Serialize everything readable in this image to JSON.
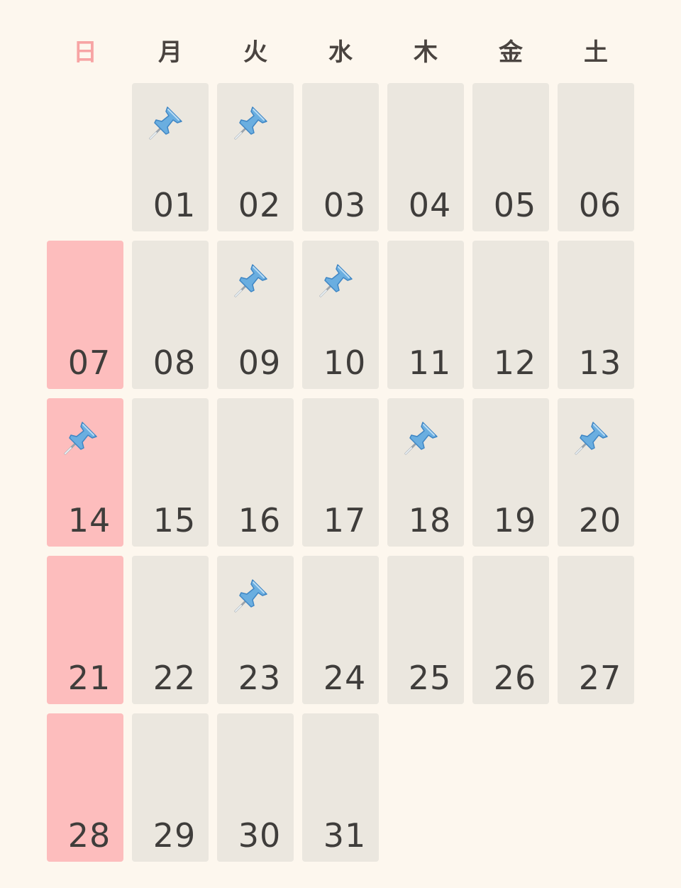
{
  "calendar": {
    "weekdays": [
      {
        "label": "日",
        "key": "sun"
      },
      {
        "label": "月",
        "key": "mon"
      },
      {
        "label": "火",
        "key": "tue"
      },
      {
        "label": "水",
        "key": "wed"
      },
      {
        "label": "木",
        "key": "thu"
      },
      {
        "label": "金",
        "key": "fri"
      },
      {
        "label": "土",
        "key": "sat"
      }
    ],
    "leading_blank_days": 1,
    "days": [
      {
        "label": "01",
        "pinned": true
      },
      {
        "label": "02",
        "pinned": true
      },
      {
        "label": "03",
        "pinned": false
      },
      {
        "label": "04",
        "pinned": false
      },
      {
        "label": "05",
        "pinned": false
      },
      {
        "label": "06",
        "pinned": false
      },
      {
        "label": "07",
        "pinned": false
      },
      {
        "label": "08",
        "pinned": false
      },
      {
        "label": "09",
        "pinned": true
      },
      {
        "label": "10",
        "pinned": true
      },
      {
        "label": "11",
        "pinned": false
      },
      {
        "label": "12",
        "pinned": false
      },
      {
        "label": "13",
        "pinned": false
      },
      {
        "label": "14",
        "pinned": true
      },
      {
        "label": "15",
        "pinned": false
      },
      {
        "label": "16",
        "pinned": false
      },
      {
        "label": "17",
        "pinned": false
      },
      {
        "label": "18",
        "pinned": true
      },
      {
        "label": "19",
        "pinned": false
      },
      {
        "label": "20",
        "pinned": true
      },
      {
        "label": "21",
        "pinned": false
      },
      {
        "label": "22",
        "pinned": false
      },
      {
        "label": "23",
        "pinned": true
      },
      {
        "label": "24",
        "pinned": false
      },
      {
        "label": "25",
        "pinned": false
      },
      {
        "label": "26",
        "pinned": false
      },
      {
        "label": "27",
        "pinned": false
      },
      {
        "label": "28",
        "pinned": false
      },
      {
        "label": "29",
        "pinned": false
      },
      {
        "label": "30",
        "pinned": false
      },
      {
        "label": "31",
        "pinned": false
      }
    ],
    "pin_icon": "pushpin-icon",
    "colors": {
      "background": "#fdf7ee",
      "cell": "#ebe7df",
      "sunday_cell": "#fdbdbd",
      "sunday_header": "#f7a4a4",
      "text": "#3f3d3b",
      "pin": "#6aaee0"
    }
  }
}
